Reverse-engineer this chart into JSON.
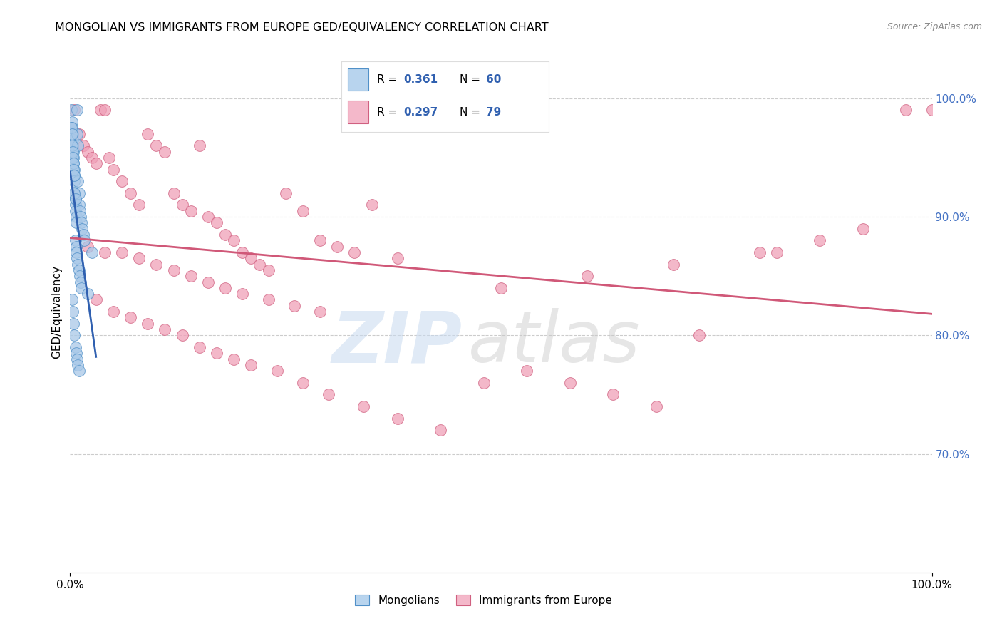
{
  "title": "MONGOLIAN VS IMMIGRANTS FROM EUROPE GED/EQUIVALENCY CORRELATION CHART",
  "source": "Source: ZipAtlas.com",
  "ylabel": "GED/Equivalency",
  "right_ytick_vals": [
    0.7,
    0.8,
    0.9,
    1.0
  ],
  "right_ytick_labels": [
    "70.0%",
    "80.0%",
    "90.0%",
    "100.0%"
  ],
  "legend_r1": "0.361",
  "legend_n1": "60",
  "legend_r2": "0.297",
  "legend_n2": "79",
  "blue_scatter_color": "#a8c8e8",
  "blue_scatter_edge": "#5090c8",
  "pink_scatter_color": "#f0a0b8",
  "pink_scatter_edge": "#d06080",
  "blue_line_color": "#3060b0",
  "pink_line_color": "#d05878",
  "legend_blue_face": "#b8d4ee",
  "legend_pink_face": "#f4b8ca",
  "legend_text_color": "#3060b0",
  "right_axis_color": "#4472c4",
  "watermark_zip_color": "#c8daf0",
  "watermark_atlas_color": "#c8c8c8",
  "ylim_low": 0.6,
  "ylim_high": 1.04,
  "mongo_x": [
    0.001,
    0.002,
    0.002,
    0.003,
    0.003,
    0.003,
    0.004,
    0.004,
    0.004,
    0.005,
    0.005,
    0.005,
    0.005,
    0.006,
    0.006,
    0.006,
    0.007,
    0.007,
    0.008,
    0.008,
    0.009,
    0.009,
    0.01,
    0.01,
    0.011,
    0.012,
    0.013,
    0.014,
    0.015,
    0.016,
    0.001,
    0.002,
    0.002,
    0.003,
    0.003,
    0.004,
    0.004,
    0.005,
    0.005,
    0.006,
    0.006,
    0.007,
    0.007,
    0.008,
    0.009,
    0.01,
    0.011,
    0.012,
    0.013,
    0.02,
    0.002,
    0.003,
    0.004,
    0.005,
    0.006,
    0.007,
    0.008,
    0.009,
    0.01,
    0.025
  ],
  "mongo_y": [
    0.99,
    0.98,
    0.975,
    0.97,
    0.965,
    0.96,
    0.955,
    0.95,
    0.945,
    0.94,
    0.935,
    0.93,
    0.92,
    0.915,
    0.91,
    0.905,
    0.9,
    0.895,
    0.99,
    0.97,
    0.96,
    0.93,
    0.92,
    0.91,
    0.905,
    0.9,
    0.895,
    0.89,
    0.885,
    0.88,
    0.975,
    0.97,
    0.96,
    0.955,
    0.95,
    0.945,
    0.94,
    0.935,
    0.92,
    0.915,
    0.88,
    0.875,
    0.87,
    0.865,
    0.86,
    0.855,
    0.85,
    0.845,
    0.84,
    0.835,
    0.83,
    0.82,
    0.81,
    0.8,
    0.79,
    0.785,
    0.78,
    0.775,
    0.77,
    0.87
  ],
  "europe_x": [
    0.005,
    0.01,
    0.015,
    0.02,
    0.025,
    0.03,
    0.035,
    0.04,
    0.045,
    0.05,
    0.06,
    0.07,
    0.08,
    0.09,
    0.1,
    0.11,
    0.12,
    0.13,
    0.14,
    0.15,
    0.16,
    0.17,
    0.18,
    0.19,
    0.2,
    0.21,
    0.22,
    0.23,
    0.25,
    0.27,
    0.29,
    0.31,
    0.33,
    0.35,
    0.38,
    0.02,
    0.04,
    0.06,
    0.08,
    0.1,
    0.12,
    0.14,
    0.16,
    0.18,
    0.2,
    0.23,
    0.26,
    0.29,
    0.03,
    0.05,
    0.07,
    0.09,
    0.11,
    0.13,
    0.15,
    0.17,
    0.19,
    0.21,
    0.24,
    0.27,
    0.3,
    0.34,
    0.38,
    0.43,
    0.48,
    0.53,
    0.58,
    0.63,
    0.68,
    0.73,
    0.82,
    0.87,
    0.92,
    0.97,
    1.0,
    0.5,
    0.6,
    0.7,
    0.8
  ],
  "europe_y": [
    0.99,
    0.97,
    0.96,
    0.955,
    0.95,
    0.945,
    0.99,
    0.99,
    0.95,
    0.94,
    0.93,
    0.92,
    0.91,
    0.97,
    0.96,
    0.955,
    0.92,
    0.91,
    0.905,
    0.96,
    0.9,
    0.895,
    0.885,
    0.88,
    0.87,
    0.865,
    0.86,
    0.855,
    0.92,
    0.905,
    0.88,
    0.875,
    0.87,
    0.91,
    0.865,
    0.875,
    0.87,
    0.87,
    0.865,
    0.86,
    0.855,
    0.85,
    0.845,
    0.84,
    0.835,
    0.83,
    0.825,
    0.82,
    0.83,
    0.82,
    0.815,
    0.81,
    0.805,
    0.8,
    0.79,
    0.785,
    0.78,
    0.775,
    0.77,
    0.76,
    0.75,
    0.74,
    0.73,
    0.72,
    0.76,
    0.77,
    0.76,
    0.75,
    0.74,
    0.8,
    0.87,
    0.88,
    0.89,
    0.99,
    0.99,
    0.84,
    0.85,
    0.86,
    0.87
  ]
}
